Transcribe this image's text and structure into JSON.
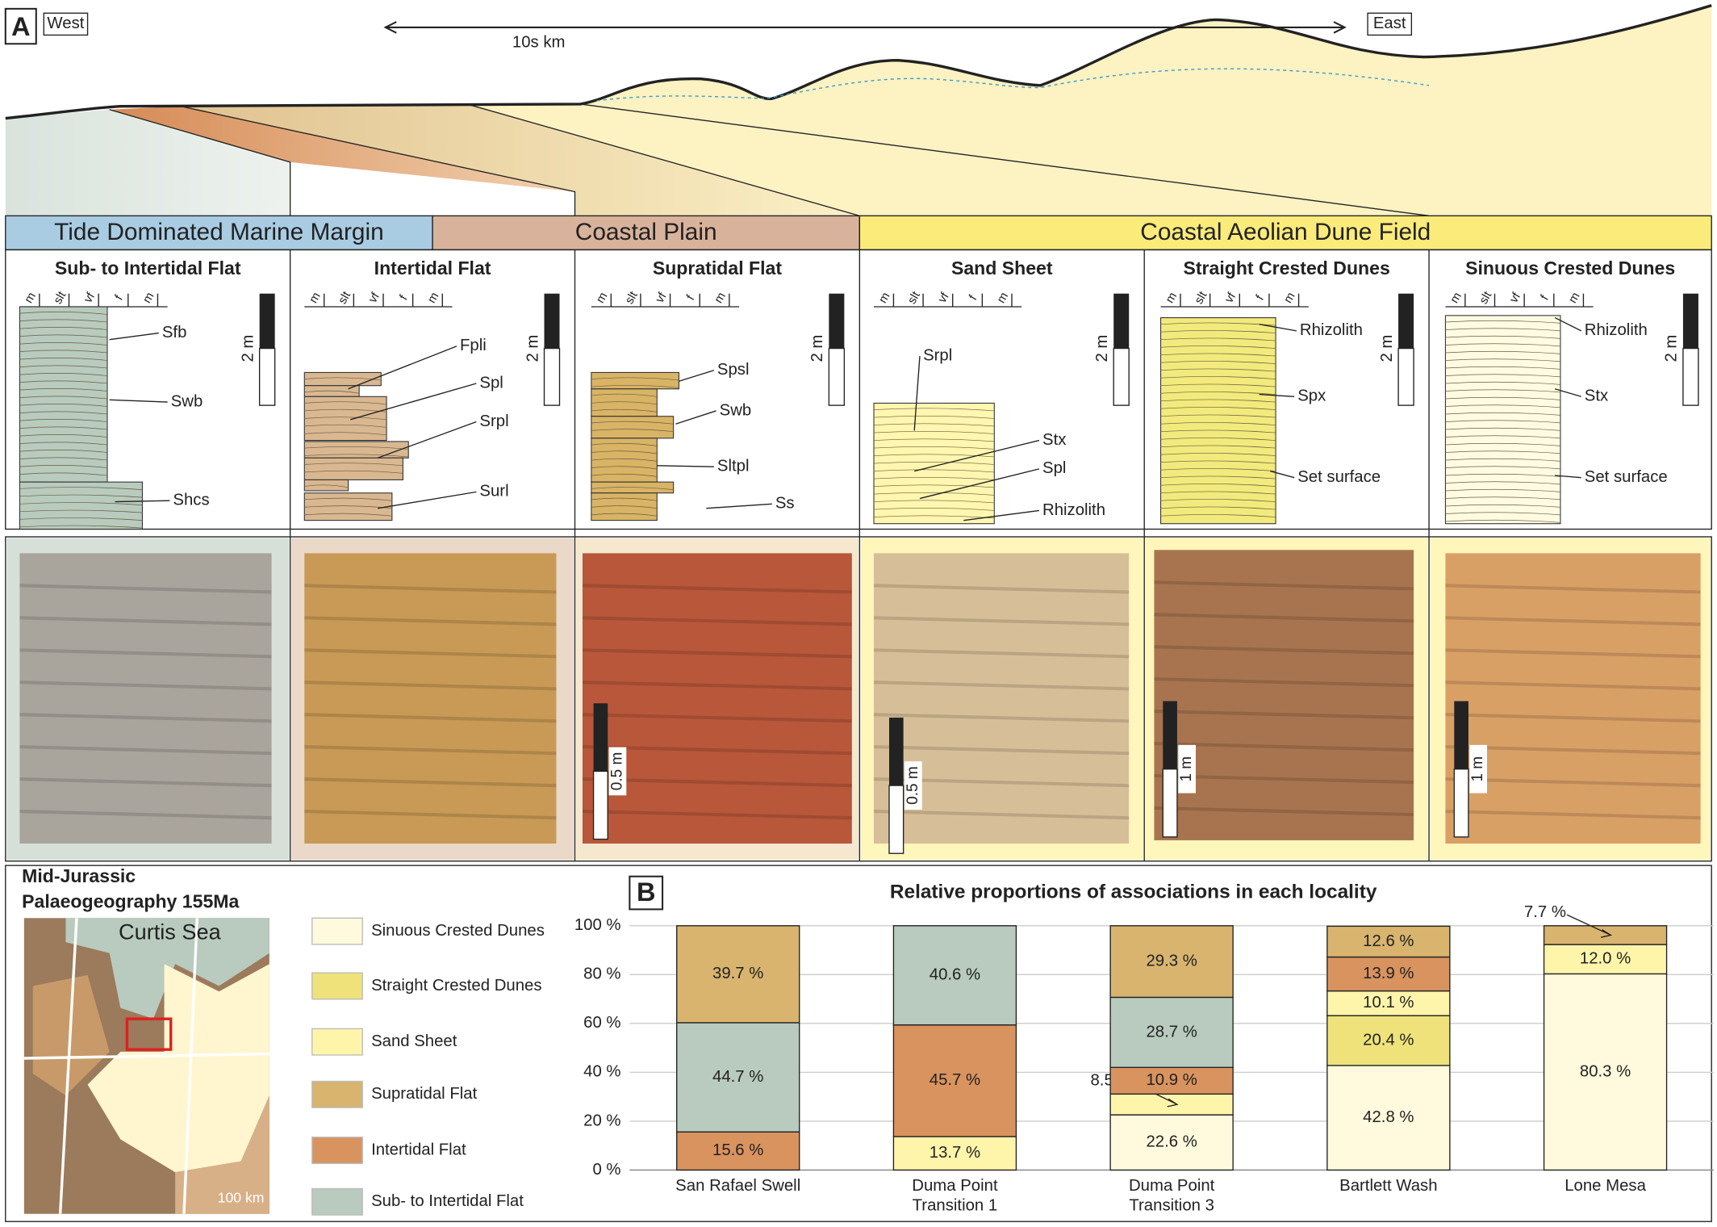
{
  "panel_a": {
    "label": "A",
    "west": "West",
    "east": "East",
    "distance": "10s km",
    "environments": [
      "Tide Dominated Marine Margin",
      "Coastal Plain",
      "Coastal Aeolian Dune Field"
    ],
    "grain_sizes": [
      "m",
      "slt",
      "vf",
      "f",
      "m"
    ],
    "log_scale": "2 m",
    "columns": [
      {
        "title": "Sub- to Intertidal Flat",
        "annotations": [
          "Sfb",
          "Swb",
          "Shcs"
        ]
      },
      {
        "title": "Intertidal Flat",
        "annotations": [
          "Fpli",
          "Spl",
          "Srpl",
          "Surl"
        ]
      },
      {
        "title": "Supratidal Flat",
        "annotations": [
          "Spsl",
          "Swb",
          "Sltpl",
          "Ss"
        ]
      },
      {
        "title": "Sand Sheet",
        "annotations": [
          "Srpl",
          "Stx",
          "Spl",
          "Rhizolith"
        ]
      },
      {
        "title": "Straight Crested Dunes",
        "annotations": [
          "Rhizolith",
          "Spx",
          "Set surface"
        ]
      },
      {
        "title": "Sinuous Crested Dunes",
        "annotations": [
          "Rhizolith",
          "Stx",
          "Set surface"
        ]
      }
    ],
    "photo_scales": [
      "0.5 m",
      "0.5 m",
      "1 m",
      "1 m"
    ]
  },
  "map": {
    "title_lines": [
      "Mid-Jurassic",
      "Palaeogeography 155Ma"
    ],
    "sea": "Curtis Sea",
    "scale": "100 km"
  },
  "chart_data": {
    "type": "stacked_bar",
    "label": "B",
    "title": "Relative proportions of associations in each locality",
    "categories": [
      "San Rafael Swell",
      "Duma Point\nTransition 1",
      "Duma Point\nTransition 3",
      "Bartlett Wash",
      "Lone Mesa"
    ],
    "ylim": [
      0,
      100
    ],
    "yticks": [
      {
        "value": 0,
        "label": "0 %"
      },
      {
        "value": 20,
        "label": "20 %"
      },
      {
        "value": 40,
        "label": "40 %"
      },
      {
        "value": 60,
        "label": "60 %"
      },
      {
        "value": 80,
        "label": "80 %"
      },
      {
        "value": 100,
        "label": "100 %"
      }
    ],
    "grid": true,
    "series": [
      {
        "name": "Sinuous Crested Dunes",
        "color": "#fffade",
        "values": [
          null,
          null,
          22.6,
          42.8,
          80.3
        ],
        "value_labels": [
          null,
          null,
          "22.6 %",
          "42.8 %",
          "80.3 %"
        ]
      },
      {
        "name": "Straight Crested Dunes",
        "color": "#efe27a",
        "values": [
          null,
          null,
          null,
          20.4,
          null
        ],
        "value_labels": [
          null,
          null,
          null,
          "20.4 %",
          null
        ]
      },
      {
        "name": "Sand Sheet",
        "color": "#fff5aa",
        "values": [
          null,
          13.7,
          8.5,
          10.1,
          12.0
        ],
        "value_labels": [
          null,
          "13.7 %",
          "8.5 %",
          "10.1 %",
          "12.0 %"
        ]
      },
      {
        "name": "Intertidal Flat",
        "color": "#d9935f",
        "values": [
          15.6,
          45.7,
          10.9,
          13.9,
          null
        ],
        "value_labels": [
          "15.6 %",
          "45.7 %",
          "10.9 %",
          "13.9 %",
          null
        ]
      },
      {
        "name": "Sub- to Intertidal Flat",
        "color": "#b8cbbe",
        "values": [
          44.7,
          40.6,
          28.7,
          null,
          null
        ],
        "value_labels": [
          "44.7 %",
          "40.6 %",
          "28.7 %",
          null,
          null
        ]
      },
      {
        "name": "Supratidal Flat",
        "color": "#d8b46e",
        "values": [
          39.7,
          null,
          29.3,
          12.6,
          7.7
        ],
        "value_labels": [
          "39.7 %",
          null,
          "29.3 %",
          "12.6 %",
          "7.7 %"
        ]
      }
    ]
  }
}
